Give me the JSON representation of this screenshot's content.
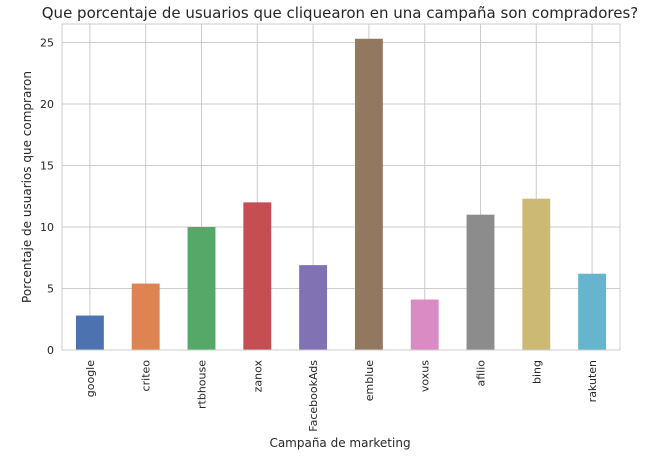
{
  "chart_data": {
    "type": "bar",
    "title": "Que porcentaje de usuarios que cliquearon en una campaña son compradores?",
    "xlabel": "Campaña de marketing",
    "ylabel": "Porcentaje de usuarios que compraron",
    "categories": [
      "google",
      "criteo",
      "rtbhouse",
      "zanox",
      "FacebookAds",
      "emblue",
      "voxus",
      "afilio",
      "bing",
      "rakuten"
    ],
    "values": [
      2.8,
      5.4,
      10.0,
      12.0,
      6.9,
      25.3,
      4.1,
      11.0,
      12.3,
      6.2
    ],
    "colors": [
      "#4c72b0",
      "#dd8452",
      "#55a868",
      "#c44e52",
      "#8172b3",
      "#937860",
      "#da8bc3",
      "#8c8c8c",
      "#ccb974",
      "#64b5cd"
    ],
    "ylim": [
      0,
      26.5
    ],
    "yticks": [
      0,
      5,
      10,
      15,
      20,
      25
    ],
    "grid": true
  }
}
